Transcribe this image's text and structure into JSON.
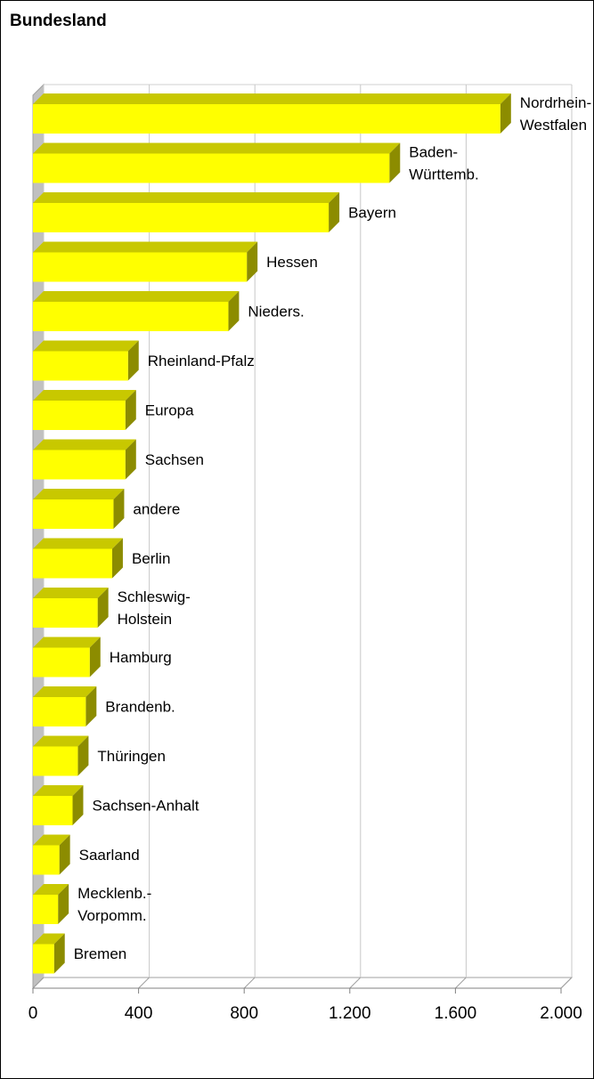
{
  "chart_data": {
    "type": "bar",
    "orientation": "horizontal",
    "three_d": true,
    "title": "Bundesland",
    "xlim": [
      0,
      2000
    ],
    "x_ticks": [
      0,
      400,
      800,
      1200,
      1600,
      2000
    ],
    "x_tick_labels": [
      "0",
      "400",
      "800",
      "1.200",
      "1.600",
      "2.000"
    ],
    "grid": true,
    "legend": "none",
    "bar_color": "#ffff00",
    "bar_top_color": "#c8c800",
    "bar_side_color": "#8c8c00",
    "categories": [
      [
        "Nordrhein-",
        "Westfalen"
      ],
      [
        "Baden-",
        "Württemb."
      ],
      [
        "Bayern"
      ],
      [
        "Hessen"
      ],
      [
        "Nieders."
      ],
      [
        "Rheinland-Pfalz"
      ],
      [
        "Europa"
      ],
      [
        "Sachsen"
      ],
      [
        "andere"
      ],
      [
        "Berlin"
      ],
      [
        "Schleswig-",
        "Holstein"
      ],
      [
        "Hamburg"
      ],
      [
        "Brandenb."
      ],
      [
        "Thüringen"
      ],
      [
        "Sachsen-Anhalt"
      ],
      [
        "Saarland"
      ],
      [
        "Mecklenb.-",
        "Vorpomm."
      ],
      [
        "Bremen"
      ]
    ],
    "values": [
      1770,
      1350,
      1120,
      810,
      740,
      360,
      350,
      350,
      305,
      300,
      245,
      215,
      200,
      170,
      150,
      100,
      95,
      80
    ]
  }
}
